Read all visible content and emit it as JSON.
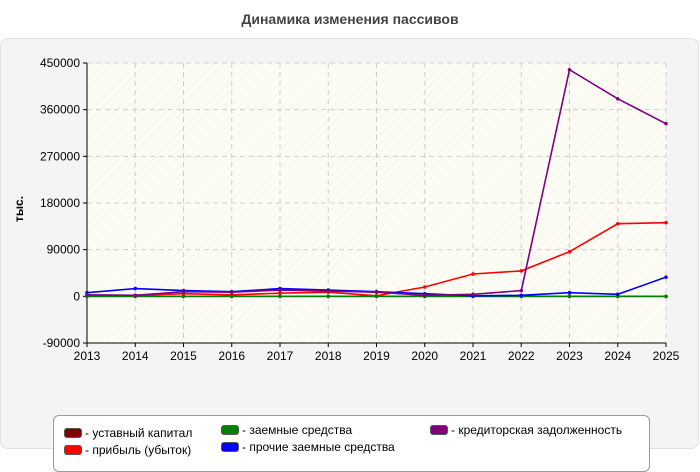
{
  "chart_data": {
    "type": "line",
    "title": "Динамика изменения пассивов",
    "ylabel": "тыс.",
    "xlabel": "",
    "x": [
      2013,
      2014,
      2015,
      2016,
      2017,
      2018,
      2019,
      2020,
      2021,
      2022,
      2023,
      2024,
      2025
    ],
    "x_ticks": [
      "2013",
      "2014",
      "2015",
      "2016",
      "2017",
      "2018",
      "2019",
      "2020",
      "2021",
      "2022",
      "2023",
      "2024",
      "2025"
    ],
    "ylim": [
      -90000,
      450000
    ],
    "y_ticks": [
      "450000",
      "360000",
      "270000",
      "180000",
      "90000",
      "0",
      "-90000"
    ],
    "y_tick_values": [
      450000,
      360000,
      270000,
      180000,
      90000,
      0,
      -90000
    ],
    "grid": true,
    "legend_position": "bottom",
    "series": [
      {
        "name": "- уставный капитал",
        "color": "#800000",
        "values": [
          100,
          100,
          100,
          100,
          100,
          100,
          100,
          100,
          100,
          100,
          100,
          100,
          100
        ]
      },
      {
        "name": "- прибыль (убыток)",
        "color": "#ff0000",
        "values": [
          1000,
          2000,
          5000,
          3000,
          6000,
          8000,
          1000,
          18000,
          43000,
          49000,
          86000,
          140000,
          142000
        ]
      },
      {
        "name": "- заемные средства",
        "color": "#008000",
        "values": [
          0,
          0,
          0,
          0,
          0,
          0,
          0,
          0,
          0,
          0,
          0,
          0,
          0
        ]
      },
      {
        "name": "- прочие заемные средства",
        "color": "#0000ff",
        "values": [
          7000,
          15000,
          11000,
          9000,
          15000,
          12000,
          9000,
          5000,
          1000,
          2000,
          7000,
          4000,
          37000
        ]
      },
      {
        "name": "- кредиторская задолженность",
        "color": "#800080",
        "values": [
          3000,
          2000,
          9000,
          8000,
          12000,
          10000,
          8000,
          2000,
          4000,
          11000,
          437000,
          381000,
          333000
        ]
      }
    ]
  }
}
